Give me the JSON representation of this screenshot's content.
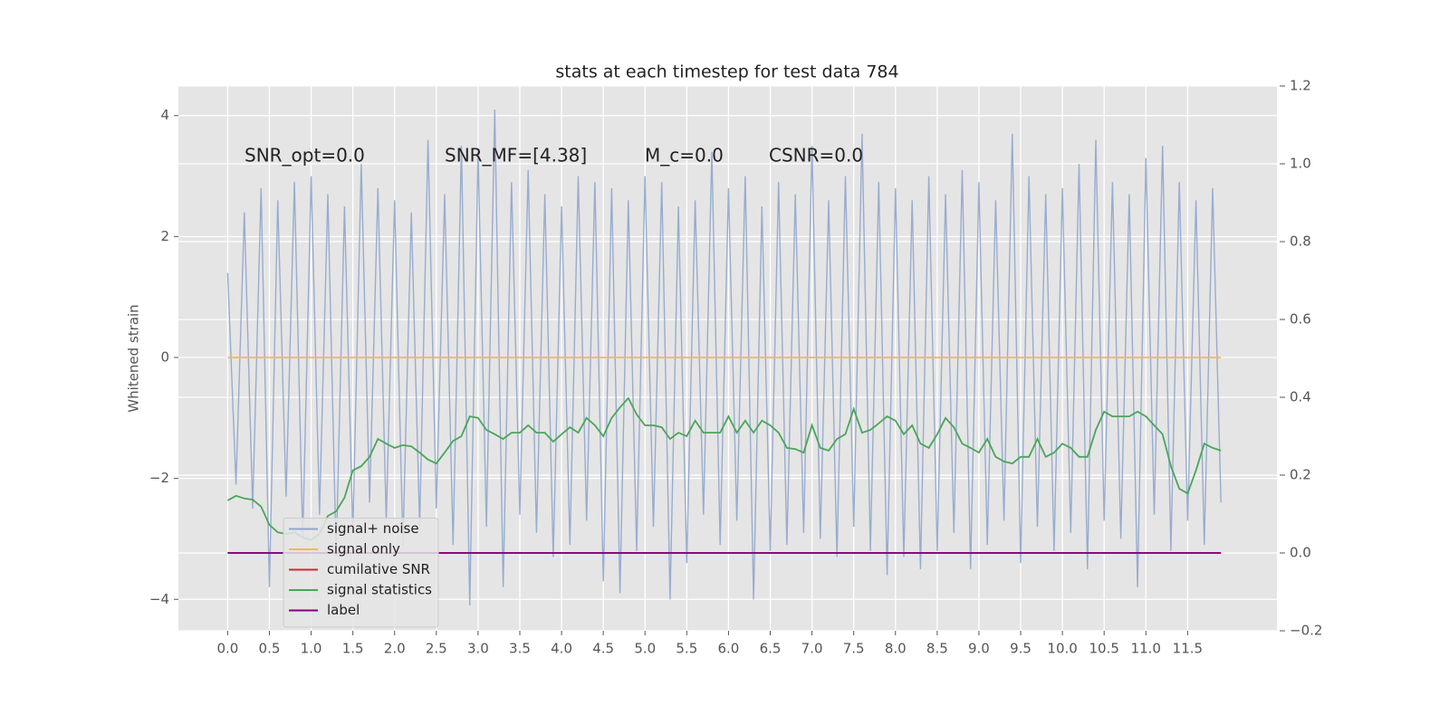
{
  "chart_data": {
    "type": "line",
    "title": "stats at each timestep for test data 784",
    "ylabel": "Whitened strain",
    "annotations": [
      "SNR_opt=0.0",
      "SNR_MF=[4.38]",
      "M_c=0.0",
      "CSNR=0.0"
    ],
    "x": [
      0.0,
      0.1,
      0.2,
      0.3,
      0.4,
      0.5,
      0.6,
      0.7,
      0.8,
      0.9,
      1.0,
      1.1,
      1.2,
      1.3,
      1.4,
      1.5,
      1.6,
      1.7,
      1.8,
      1.9,
      2.0,
      2.1,
      2.2,
      2.3,
      2.4,
      2.5,
      2.6,
      2.7,
      2.8,
      2.9,
      3.0,
      3.1,
      3.2,
      3.3,
      3.4,
      3.5,
      3.6,
      3.7,
      3.8,
      3.9,
      4.0,
      4.1,
      4.2,
      4.3,
      4.4,
      4.5,
      4.6,
      4.7,
      4.8,
      4.9,
      5.0,
      5.1,
      5.2,
      5.3,
      5.4,
      5.5,
      5.6,
      5.7,
      5.8,
      5.9,
      6.0,
      6.1,
      6.2,
      6.3,
      6.4,
      6.5,
      6.6,
      6.7,
      6.8,
      6.9,
      7.0,
      7.1,
      7.2,
      7.3,
      7.4,
      7.5,
      7.6,
      7.7,
      7.8,
      7.9,
      8.0,
      8.1,
      8.2,
      8.3,
      8.4,
      8.5,
      8.6,
      8.7,
      8.8,
      8.9,
      9.0,
      9.1,
      9.2,
      9.3,
      9.4,
      9.5,
      9.6,
      9.7,
      9.8,
      9.9,
      10.0,
      10.1,
      10.2,
      10.3,
      10.4,
      10.5,
      10.6,
      10.7,
      10.8,
      10.9,
      11.0,
      11.1,
      11.2,
      11.3,
      11.4,
      11.5,
      11.6,
      11.7,
      11.8,
      11.9
    ],
    "series": [
      {
        "name": "signal+ noise",
        "color": "#8fa5cc",
        "values": [
          1.4,
          -2.1,
          2.4,
          -2.5,
          2.8,
          -3.8,
          2.6,
          -2.3,
          2.9,
          -3.0,
          3.0,
          -2.6,
          2.7,
          -3.3,
          2.5,
          -2.9,
          3.2,
          -2.4,
          2.8,
          -2.7,
          2.6,
          -3.1,
          2.4,
          -2.8,
          3.6,
          -2.5,
          2.7,
          -3.1,
          3.5,
          -4.1,
          3.4,
          -2.8,
          4.1,
          -3.8,
          2.9,
          -2.6,
          3.1,
          -2.9,
          2.7,
          -3.3,
          2.5,
          -3.1,
          3.0,
          -2.7,
          2.9,
          -3.7,
          2.8,
          -3.9,
          2.6,
          -3.2,
          3.0,
          -2.8,
          2.9,
          -4.0,
          2.5,
          -3.4,
          2.6,
          -2.6,
          3.4,
          -3.1,
          2.8,
          -2.7,
          3.0,
          -4.0,
          2.5,
          -3.2,
          2.9,
          -3.1,
          2.7,
          -2.9,
          3.5,
          -3.0,
          2.6,
          -3.3,
          3.0,
          -2.8,
          3.7,
          -3.2,
          2.9,
          -3.6,
          2.8,
          -3.3,
          2.6,
          -3.5,
          3.0,
          -3.2,
          2.7,
          -2.9,
          3.1,
          -3.5,
          2.9,
          -3.1,
          2.6,
          -2.7,
          3.7,
          -3.4,
          3.0,
          -2.8,
          2.7,
          -3.2,
          2.8,
          -2.9,
          3.2,
          -3.5,
          3.6,
          -2.7,
          2.9,
          -3.0,
          2.7,
          -3.8,
          3.3,
          -2.6,
          3.5,
          -3.2,
          2.9,
          -2.7,
          2.6,
          -3.1,
          2.8,
          -2.4
        ]
      },
      {
        "name": "signal only",
        "color": "#f0b95a",
        "x": [
          0.0,
          11.9
        ],
        "values": [
          0,
          0
        ]
      },
      {
        "name": "cumilative SNR",
        "color": "#d62728",
        "axis": "y2",
        "x": [
          0.0,
          11.9
        ],
        "values": [
          0,
          0
        ]
      },
      {
        "name": "signal statistics",
        "color": "#4aa55a",
        "axis": "y2",
        "values": [
          0.135,
          0.147,
          0.14,
          0.137,
          0.119,
          0.072,
          0.053,
          0.049,
          0.053,
          0.04,
          0.033,
          0.049,
          0.095,
          0.107,
          0.142,
          0.212,
          0.223,
          0.247,
          0.293,
          0.281,
          0.27,
          0.277,
          0.274,
          0.258,
          0.24,
          0.23,
          0.258,
          0.288,
          0.3,
          0.351,
          0.347,
          0.316,
          0.305,
          0.293,
          0.309,
          0.309,
          0.328,
          0.309,
          0.309,
          0.286,
          0.305,
          0.323,
          0.309,
          0.347,
          0.328,
          0.3,
          0.347,
          0.374,
          0.398,
          0.356,
          0.328,
          0.328,
          0.323,
          0.293,
          0.309,
          0.3,
          0.34,
          0.309,
          0.309,
          0.309,
          0.351,
          0.309,
          0.34,
          0.309,
          0.34,
          0.328,
          0.309,
          0.27,
          0.267,
          0.258,
          0.328,
          0.27,
          0.263,
          0.293,
          0.305,
          0.37,
          0.309,
          0.316,
          0.333,
          0.351,
          0.34,
          0.305,
          0.328,
          0.281,
          0.27,
          0.305,
          0.347,
          0.323,
          0.281,
          0.27,
          0.258,
          0.293,
          0.247,
          0.235,
          0.23,
          0.247,
          0.247,
          0.293,
          0.247,
          0.258,
          0.281,
          0.27,
          0.247,
          0.247,
          0.316,
          0.363,
          0.351,
          0.351,
          0.351,
          0.363,
          0.351,
          0.328,
          0.305,
          0.223,
          0.165,
          0.153,
          0.212,
          0.281,
          0.27,
          0.263
        ]
      },
      {
        "name": "label",
        "color": "#800080",
        "axis": "y2",
        "x": [
          0.0,
          11.9
        ],
        "values": [
          0,
          0
        ]
      }
    ],
    "xlim": [
      -0.59,
      12.57
    ],
    "ylim": [
      -4.52,
      4.49
    ],
    "y2lim": [
      -0.2,
      1.2
    ],
    "xticks": [
      {
        "value": 0,
        "label": "0.0"
      },
      0.5,
      {
        "value": 1,
        "label": "1.0"
      },
      1.5,
      {
        "value": 2,
        "label": "2.0"
      },
      2.5,
      {
        "value": 3,
        "label": "3.0"
      },
      3.5,
      {
        "value": 4,
        "label": "4.0"
      },
      4.5,
      {
        "value": 5,
        "label": "5.0"
      },
      5.5,
      {
        "value": 6,
        "label": "6.0"
      },
      6.5,
      {
        "value": 7,
        "label": "7.0"
      },
      7.5,
      {
        "value": 8,
        "label": "8.0"
      },
      8.5,
      {
        "value": 9,
        "label": "9.0"
      },
      9.5,
      {
        "value": 10,
        "label": "10.0"
      },
      10.5,
      {
        "value": 11,
        "label": "11.0"
      },
      11.5
    ],
    "yticks": [
      {
        "value": -4,
        "label": "−4"
      },
      {
        "value": -2,
        "label": "−2"
      },
      0,
      2,
      4
    ],
    "y2ticks": [
      {
        "value": -0.2,
        "label": "−0.2"
      },
      {
        "value": 0,
        "label": "0.0"
      },
      0.2,
      0.4,
      0.6,
      0.8,
      {
        "value": 1,
        "label": "1.0"
      },
      1.2
    ],
    "grid": true,
    "legend": "lower left"
  }
}
